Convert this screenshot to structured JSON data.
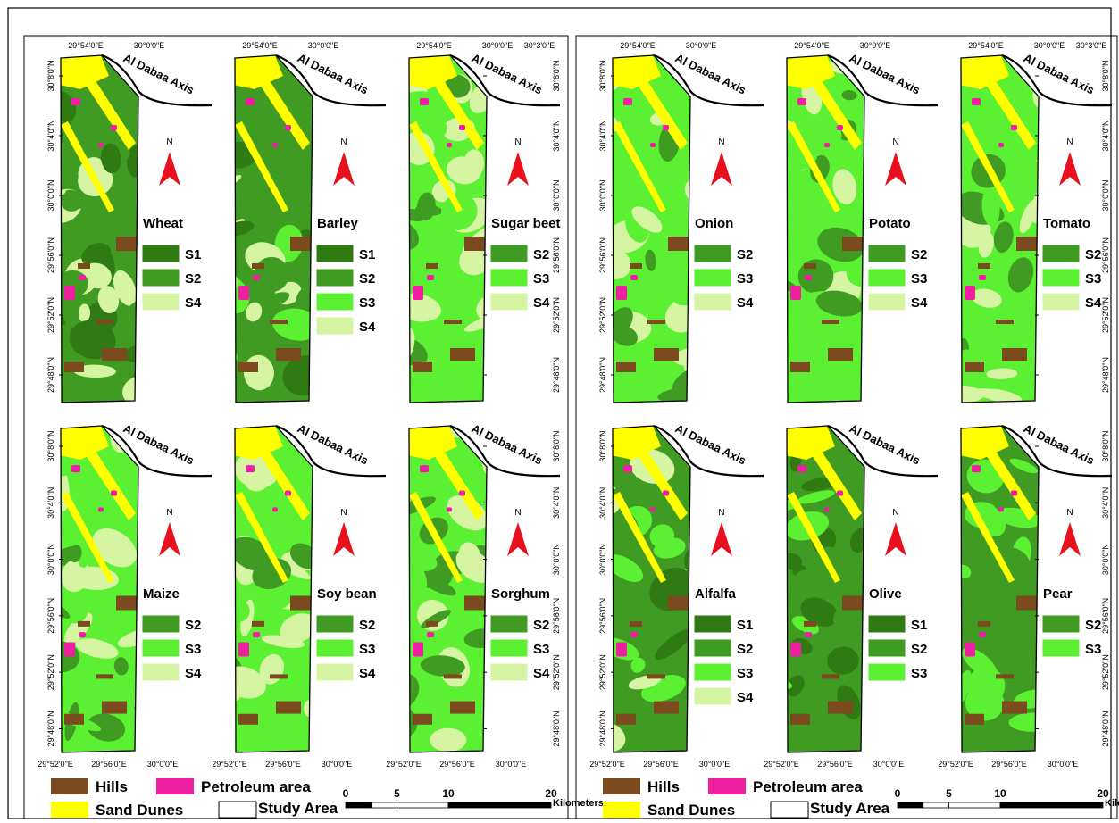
{
  "panels": [
    {
      "maps": [
        {
          "crop": "Wheat",
          "classes": [
            "S1",
            "S2",
            "S4"
          ]
        },
        {
          "crop": "Barley",
          "classes": [
            "S1",
            "S2",
            "S3",
            "S4"
          ]
        },
        {
          "crop": "Sugar beet",
          "classes": [
            "S2",
            "S3",
            "S4"
          ]
        },
        {
          "crop": "Maize",
          "classes": [
            "S2",
            "S3",
            "S4"
          ]
        },
        {
          "crop": "Soy bean",
          "classes": [
            "S2",
            "S3",
            "S4"
          ]
        },
        {
          "crop": "Sorghum",
          "classes": [
            "S2",
            "S3",
            "S4"
          ]
        }
      ]
    },
    {
      "maps": [
        {
          "crop": "Onion",
          "classes": [
            "S2",
            "S3",
            "S4"
          ]
        },
        {
          "crop": "Potato",
          "classes": [
            "S2",
            "S3",
            "S4"
          ]
        },
        {
          "crop": "Tomato",
          "classes": [
            "S2",
            "S3",
            "S4"
          ]
        },
        {
          "crop": "Alfalfa",
          "classes": [
            "S1",
            "S2",
            "S3",
            "S4"
          ]
        },
        {
          "crop": "Olive",
          "classes": [
            "S1",
            "S2",
            "S3"
          ]
        },
        {
          "crop": "Pear",
          "classes": [
            "S2",
            "S3"
          ]
        }
      ]
    }
  ],
  "class_colors": {
    "S1": "#2f7a12",
    "S2": "#3f9b22",
    "S3": "#5cf032",
    "S4": "#d6f5a3"
  },
  "road_label": "Al Dabaa Axis",
  "north": "N",
  "top_longitudes": [
    "29°54'0\"E",
    "30°0'0\"E",
    "30°3'0\"E"
  ],
  "bottom_longitudes": [
    "29°52'0\"E",
    "29°56'0\"E",
    "30°0'0\"E"
  ],
  "latitudes": [
    "30°8'0\"N",
    "30°4'0\"N",
    "30°0'0\"N",
    "29°56'0\"N",
    "29°52'0\"N",
    "29°48'0\"N"
  ],
  "legend": {
    "items": [
      {
        "label": "Hills",
        "color": "#7b4a1e"
      },
      {
        "label": "Petroleum area",
        "color": "#ee1fa0"
      },
      {
        "label": "Sand Dunes",
        "color": "#ffff00"
      },
      {
        "label": "Study Area",
        "color": "#ffffff"
      }
    ]
  },
  "scale": {
    "ticks": [
      0,
      5,
      10,
      20
    ],
    "unit": "Kilometers"
  }
}
